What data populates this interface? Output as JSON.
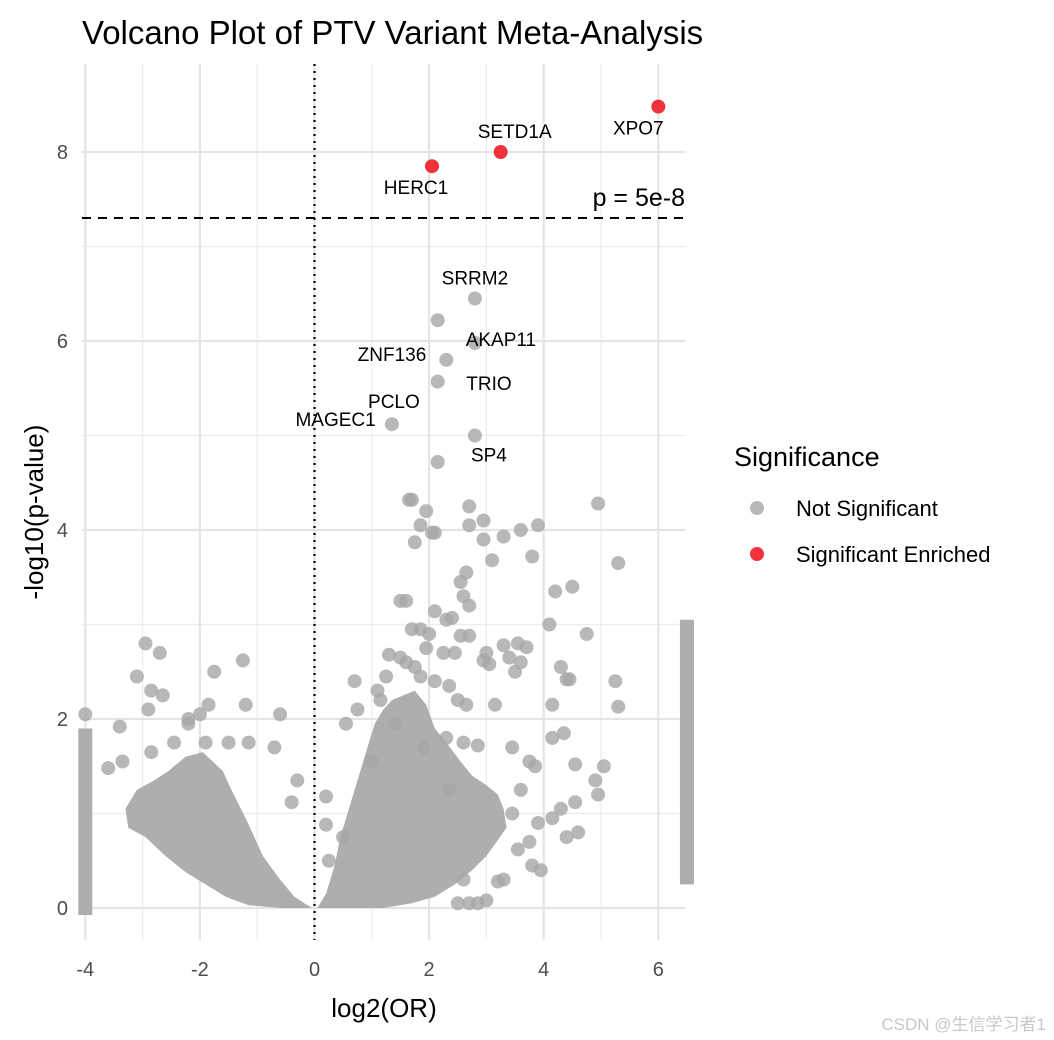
{
  "chart_data": {
    "type": "scatter",
    "title": "Volcano Plot of PTV Variant Meta-Analysis",
    "xlabel": "log2(OR)",
    "ylabel": "-log10(p-value)",
    "xlim": [
      -4,
      6.5
    ],
    "ylim": [
      -0.5,
      8.9
    ],
    "x_ticks": [
      -4,
      -2,
      0,
      2,
      4,
      6
    ],
    "y_ticks": [
      0,
      2,
      4,
      6,
      8
    ],
    "grid": true,
    "legend_position": "right",
    "threshold": {
      "y": 7.30103,
      "label": "p = 5e-8",
      "style": "dashed"
    },
    "vline": {
      "x": 0,
      "style": "dotted"
    },
    "series": [
      {
        "name": "Not Significant",
        "color": "#a6a6a6",
        "points": [
          [
            2.8,
            6.45
          ],
          [
            2.15,
            6.22
          ],
          [
            2.8,
            5.98
          ],
          [
            2.3,
            5.8
          ],
          [
            2.15,
            5.57
          ],
          [
            1.35,
            5.12
          ],
          [
            2.8,
            5.0
          ],
          [
            2.15,
            4.72
          ],
          [
            4.95,
            4.28
          ],
          [
            5.3,
            3.65
          ],
          [
            1.65,
            4.32
          ],
          [
            1.7,
            4.32
          ],
          [
            1.95,
            4.2
          ],
          [
            2.7,
            4.25
          ],
          [
            3.9,
            4.05
          ],
          [
            3.6,
            4.0
          ],
          [
            2.7,
            4.05
          ],
          [
            2.95,
            4.1
          ],
          [
            1.85,
            4.05
          ],
          [
            2.05,
            3.97
          ],
          [
            2.1,
            3.97
          ],
          [
            3.3,
            3.93
          ],
          [
            2.95,
            3.9
          ],
          [
            1.75,
            3.87
          ],
          [
            3.8,
            3.72
          ],
          [
            3.1,
            3.68
          ],
          [
            2.65,
            3.55
          ],
          [
            4.5,
            3.4
          ],
          [
            4.2,
            3.35
          ],
          [
            2.55,
            3.45
          ],
          [
            2.6,
            3.3
          ],
          [
            1.5,
            3.25
          ],
          [
            1.6,
            3.25
          ],
          [
            2.7,
            3.2
          ],
          [
            2.1,
            3.14
          ],
          [
            4.1,
            3.0
          ],
          [
            2.3,
            3.05
          ],
          [
            2.4,
            3.07
          ],
          [
            4.75,
            2.9
          ],
          [
            1.7,
            2.95
          ],
          [
            1.85,
            2.95
          ],
          [
            2.55,
            2.88
          ],
          [
            2.7,
            2.88
          ],
          [
            3.3,
            2.78
          ],
          [
            3.55,
            2.8
          ],
          [
            3.7,
            2.76
          ],
          [
            2.0,
            2.9
          ],
          [
            1.95,
            2.75
          ],
          [
            2.25,
            2.7
          ],
          [
            2.45,
            2.7
          ],
          [
            3.0,
            2.7
          ],
          [
            3.4,
            2.65
          ],
          [
            3.05,
            2.58
          ],
          [
            2.95,
            2.62
          ],
          [
            4.3,
            2.55
          ],
          [
            3.6,
            2.6
          ],
          [
            5.25,
            2.4
          ],
          [
            4.4,
            2.42
          ],
          [
            4.45,
            2.42
          ],
          [
            3.5,
            2.5
          ],
          [
            1.5,
            2.65
          ],
          [
            1.6,
            2.6
          ],
          [
            1.3,
            2.68
          ],
          [
            1.75,
            2.55
          ],
          [
            1.85,
            2.45
          ],
          [
            2.1,
            2.4
          ],
          [
            2.35,
            2.35
          ],
          [
            1.25,
            2.45
          ],
          [
            0.7,
            2.4
          ],
          [
            1.1,
            2.3
          ],
          [
            1.15,
            2.2
          ],
          [
            4.15,
            2.15
          ],
          [
            5.3,
            2.13
          ],
          [
            3.15,
            2.15
          ],
          [
            2.65,
            2.15
          ],
          [
            2.5,
            2.2
          ],
          [
            0.75,
            2.1
          ],
          [
            0.55,
            1.95
          ],
          [
            -2.95,
            2.8
          ],
          [
            -2.7,
            2.7
          ],
          [
            -1.25,
            2.62
          ],
          [
            -1.75,
            2.5
          ],
          [
            -3.1,
            2.45
          ],
          [
            -2.85,
            2.3
          ],
          [
            -2.65,
            2.25
          ],
          [
            -2.9,
            2.1
          ],
          [
            -2.0,
            2.05
          ],
          [
            -1.85,
            2.15
          ],
          [
            -1.2,
            2.15
          ],
          [
            -0.6,
            2.05
          ],
          [
            -2.2,
            2.0
          ],
          [
            -2.2,
            1.95
          ],
          [
            -3.4,
            1.92
          ],
          [
            -4.0,
            2.05
          ],
          [
            -3.35,
            1.55
          ],
          [
            -3.6,
            1.48
          ],
          [
            -2.85,
            1.65
          ],
          [
            -2.45,
            1.75
          ],
          [
            -1.9,
            1.75
          ],
          [
            -1.5,
            1.75
          ],
          [
            -1.15,
            1.75
          ],
          [
            -0.7,
            1.7
          ],
          [
            -0.3,
            1.35
          ],
          [
            -0.4,
            1.12
          ],
          [
            0.2,
            1.18
          ],
          [
            0.2,
            0.88
          ],
          [
            1.9,
            1.7
          ],
          [
            2.3,
            1.8
          ],
          [
            2.6,
            1.75
          ],
          [
            2.85,
            1.72
          ],
          [
            3.45,
            1.7
          ],
          [
            3.75,
            1.55
          ],
          [
            4.15,
            1.8
          ],
          [
            4.35,
            1.85
          ],
          [
            4.55,
            1.52
          ],
          [
            4.9,
            1.35
          ],
          [
            5.05,
            1.5
          ],
          [
            4.95,
            1.2
          ],
          [
            4.55,
            1.12
          ],
          [
            4.3,
            1.05
          ],
          [
            4.15,
            0.95
          ],
          [
            4.4,
            0.75
          ],
          [
            4.6,
            0.8
          ],
          [
            3.9,
            0.9
          ],
          [
            3.75,
            0.7
          ],
          [
            3.55,
            0.62
          ],
          [
            3.3,
            0.3
          ],
          [
            3.8,
            0.45
          ],
          [
            3.95,
            0.4
          ],
          [
            2.85,
            0.05
          ],
          [
            2.7,
            0.05
          ],
          [
            2.5,
            0.05
          ],
          [
            2.6,
            0.3
          ],
          [
            3.0,
            0.08
          ],
          [
            3.2,
            0.28
          ],
          [
            0.25,
            0.5
          ],
          [
            0.5,
            0.75
          ],
          [
            1.0,
            1.55
          ],
          [
            1.4,
            1.95
          ],
          [
            3.6,
            1.25
          ],
          [
            3.85,
            1.5
          ],
          [
            2.35,
            1.25
          ],
          [
            3.45,
            1.0
          ]
        ]
      },
      {
        "name": "Significant Enriched",
        "color": "#ee1c25",
        "points": [
          [
            6.0,
            8.48
          ],
          [
            3.25,
            8.0
          ],
          [
            2.05,
            7.85
          ]
        ]
      }
    ],
    "labels": [
      {
        "text": "XPO7",
        "x": 6.0,
        "y": 8.48,
        "pos": "below-left"
      },
      {
        "text": "SETD1A",
        "x": 3.25,
        "y": 8.0,
        "pos": "above"
      },
      {
        "text": "HERC1",
        "x": 2.05,
        "y": 7.85,
        "pos": "below-left"
      },
      {
        "text": "SRRM2",
        "x": 2.8,
        "y": 6.45,
        "pos": "above"
      },
      {
        "text": "AKAP11",
        "x": 2.15,
        "y": 6.22,
        "pos": "below-right"
      },
      {
        "text": "ZNF136",
        "x": 2.3,
        "y": 5.8,
        "pos": "left"
      },
      {
        "text": "TRIO",
        "x": 2.3,
        "y": 5.8,
        "pos": "below-right"
      },
      {
        "text": "PCLO",
        "x": 1.35,
        "y": 5.12,
        "pos": "above"
      },
      {
        "text": "MAGEC1",
        "x": 2.15,
        "y": 4.72,
        "pos": "left"
      },
      {
        "text": "SP4",
        "x": 2.8,
        "y": 5.0,
        "pos": "below"
      }
    ]
  },
  "legend": {
    "title": "Significance",
    "items": [
      {
        "label": "Not Significant",
        "color": "#a6a6a6"
      },
      {
        "label": "Significant Enriched",
        "color": "#ee1c25"
      }
    ]
  },
  "watermark": "CSDN @生信学习者1"
}
